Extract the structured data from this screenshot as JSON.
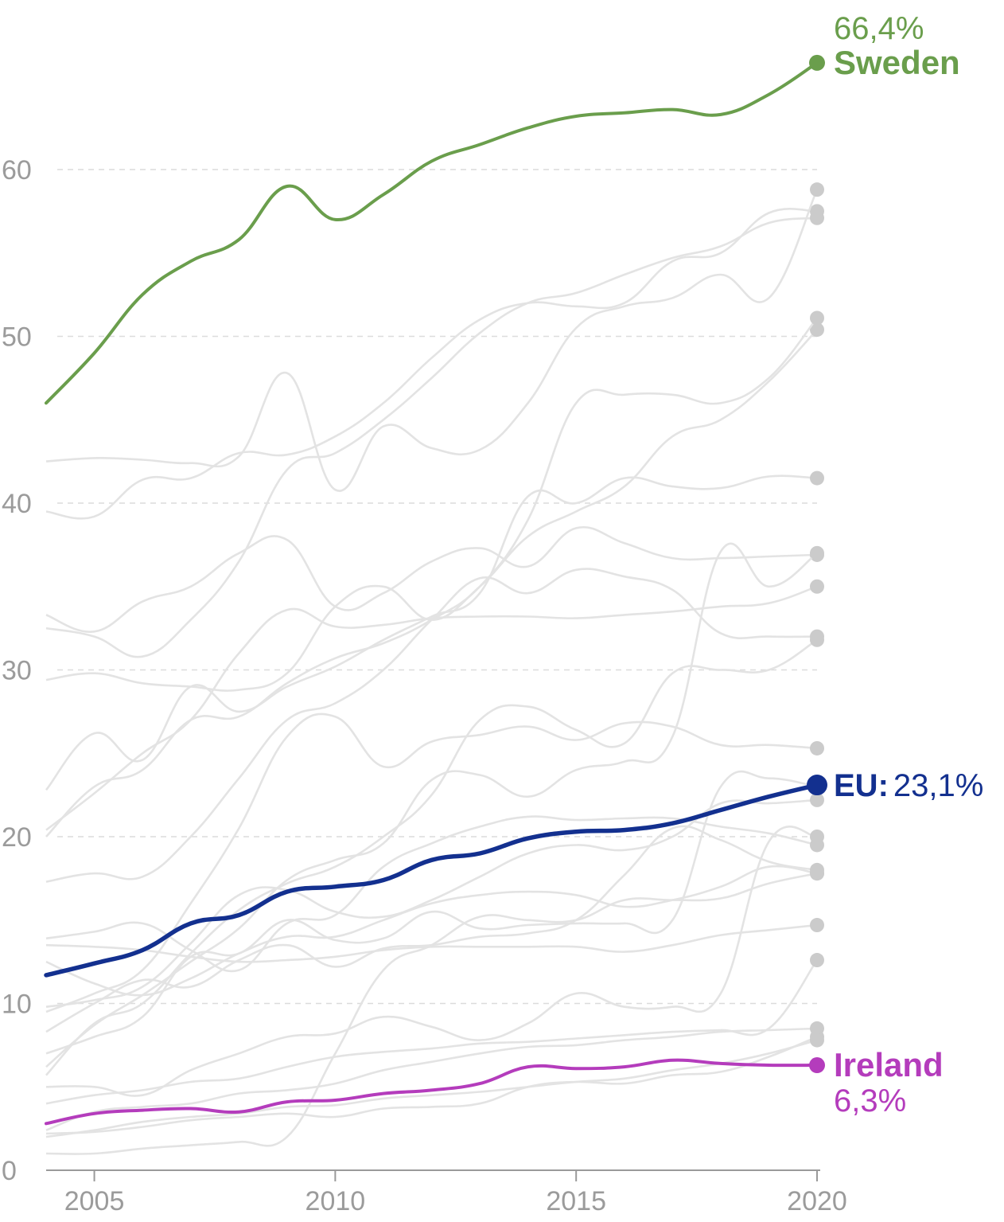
{
  "chart_data": {
    "type": "line",
    "title": "",
    "xlabel": "",
    "ylabel": "",
    "xlim": [
      2004,
      2020
    ],
    "ylim": [
      0,
      66.4
    ],
    "x_ticks": [
      "2005",
      "2010",
      "2015",
      "2020"
    ],
    "y_ticks": [
      "0",
      "10",
      "20",
      "30",
      "40",
      "50",
      "60"
    ],
    "grid": "horizontal dashed",
    "x": [
      2004,
      2005,
      2006,
      2007,
      2008,
      2009,
      2010,
      2011,
      2012,
      2013,
      2014,
      2015,
      2016,
      2017,
      2018,
      2019,
      2020
    ],
    "highlight_series": [
      {
        "key": "sweden",
        "name": "Sweden",
        "value_label": "66,4%",
        "color": "#6a9e4c",
        "values": [
          46.0,
          49.0,
          52.5,
          54.5,
          55.8,
          59.0,
          57.0,
          58.5,
          60.5,
          61.5,
          62.5,
          63.2,
          63.4,
          63.6,
          63.3,
          64.5,
          66.4
        ]
      },
      {
        "key": "eu",
        "name": "EU:",
        "value_label": "23,1%",
        "color": "#13308f",
        "values": [
          11.7,
          12.4,
          13.2,
          14.8,
          15.3,
          16.7,
          17.0,
          17.4,
          18.6,
          19.0,
          19.9,
          20.3,
          20.4,
          20.8,
          21.6,
          22.4,
          23.1
        ]
      },
      {
        "key": "ireland",
        "name": "Ireland",
        "value_label": "6,3%",
        "color": "#b43cbc",
        "values": [
          2.8,
          3.4,
          3.6,
          3.7,
          3.5,
          4.1,
          4.2,
          4.6,
          4.8,
          5.2,
          6.2,
          6.1,
          6.2,
          6.6,
          6.4,
          6.3,
          6.3
        ]
      }
    ],
    "background_series": [
      [
        22.8,
        26.2,
        24.6,
        29.0,
        27.5,
        29.0,
        30.2,
        31.8,
        33.2,
        34.6,
        40.4,
        40.0,
        41.5,
        41.0,
        40.9,
        41.6,
        41.5
      ],
      [
        39.5,
        39.2,
        41.4,
        41.5,
        43.0,
        42.9,
        44.0,
        46.0,
        48.7,
        51.0,
        52.0,
        51.8,
        52.0,
        54.5,
        55.0,
        57.4,
        57.5
      ],
      [
        42.5,
        42.7,
        42.6,
        42.4,
        42.8,
        47.8,
        40.8,
        44.6,
        43.3,
        43.2,
        46.0,
        50.5,
        51.8,
        52.3,
        53.7,
        52.3,
        58.8
      ],
      [
        32.5,
        32.0,
        30.8,
        33.0,
        36.5,
        42.0,
        43.0,
        45.0,
        47.5,
        50.2,
        52.0,
        52.6,
        53.7,
        54.7,
        55.4,
        56.8,
        57.1
      ],
      [
        29.4,
        29.8,
        29.2,
        29.0,
        28.8,
        29.8,
        33.8,
        35.0,
        33.0,
        35.0,
        38.0,
        39.5,
        41.0,
        44.0,
        45.0,
        47.3,
        50.4
      ],
      [
        33.3,
        32.3,
        34.1,
        35.0,
        37.0,
        37.8,
        33.8,
        34.6,
        36.5,
        37.3,
        36.2,
        38.5,
        37.6,
        36.7,
        36.7,
        36.8,
        36.9
      ],
      [
        20.0,
        23.0,
        24.0,
        27.0,
        27.2,
        29.2,
        30.7,
        31.6,
        33.0,
        35.0,
        39.0,
        46.0,
        46.5,
        46.5,
        46.0,
        47.5,
        51.1
      ],
      [
        20.4,
        22.6,
        25.0,
        27.0,
        31.0,
        33.6,
        32.6,
        32.7,
        33.1,
        33.2,
        33.2,
        33.1,
        33.3,
        33.5,
        33.8,
        34.0,
        35.0
      ],
      [
        9.5,
        10.6,
        12.0,
        16.0,
        20.5,
        26.0,
        27.2,
        24.2,
        25.7,
        26.1,
        26.6,
        25.8,
        26.8,
        26.6,
        25.5,
        25.5,
        25.3
      ],
      [
        17.3,
        17.8,
        17.6,
        20.0,
        23.5,
        27.0,
        28.0,
        30.0,
        33.0,
        35.5,
        34.6,
        36.0,
        35.6,
        34.8,
        32.2,
        32.0,
        32.0
      ],
      [
        13.9,
        14.3,
        14.8,
        13.2,
        12.0,
        14.8,
        15.3,
        18.2,
        19.6,
        20.6,
        21.2,
        21.0,
        21.1,
        21.1,
        20.6,
        20.2,
        19.5
      ],
      [
        5.7,
        8.8,
        10.0,
        13.0,
        15.6,
        17.2,
        18.2,
        20.0,
        22.5,
        27.0,
        27.8,
        26.4,
        25.6,
        29.8,
        30.0,
        30.0,
        31.8
      ],
      [
        6.2,
        8.7,
        10.5,
        12.5,
        14.5,
        17.4,
        18.6,
        19.6,
        23.4,
        23.7,
        22.4,
        24.0,
        24.5,
        26.0,
        37.1,
        35.0,
        37.0
      ],
      [
        9.8,
        10.2,
        11.0,
        13.6,
        16.5,
        16.8,
        15.5,
        15.2,
        16.2,
        17.6,
        19.0,
        19.5,
        19.2,
        20.0,
        22.0,
        22.0,
        22.2
      ],
      [
        12.5,
        11.2,
        10.5,
        11.5,
        13.0,
        14.0,
        14.0,
        15.0,
        16.0,
        16.5,
        16.7,
        16.5,
        15.8,
        16.2,
        17.0,
        18.2,
        17.8
      ],
      [
        7.0,
        8.0,
        9.2,
        12.8,
        13.0,
        15.0,
        13.8,
        13.9,
        15.5,
        14.5,
        14.7,
        14.8,
        14.8,
        15.0,
        23.0,
        23.5,
        23.0
      ],
      [
        8.3,
        10.0,
        11.4,
        11.0,
        12.6,
        13.5,
        12.2,
        13.3,
        13.5,
        14.0,
        14.2,
        15.0,
        17.7,
        20.5,
        19.8,
        18.5,
        18.0
      ],
      [
        13.5,
        13.4,
        13.2,
        12.8,
        12.5,
        12.6,
        12.8,
        13.2,
        13.4,
        13.4,
        13.4,
        13.4,
        13.1,
        13.5,
        14.1,
        14.4,
        14.7
      ],
      [
        5.0,
        5.0,
        4.5,
        6.0,
        7.0,
        8.0,
        8.2,
        9.2,
        8.6,
        7.8,
        8.8,
        10.6,
        9.8,
        9.8,
        10.6,
        19.7,
        20.0
      ],
      [
        2.2,
        2.3,
        2.6,
        3.0,
        3.2,
        3.4,
        3.2,
        3.7,
        3.8,
        4.0,
        5.0,
        5.3,
        5.2,
        5.7,
        5.9,
        6.8,
        8.0
      ],
      [
        1.0,
        1.0,
        1.3,
        1.5,
        1.7,
        2.0,
        7.0,
        12.0,
        13.5,
        15.2,
        15.0,
        15.0,
        16.2,
        16.2,
        16.3,
        17.2,
        17.8
      ],
      [
        2.4,
        3.5,
        3.8,
        4.0,
        4.6,
        4.8,
        5.2,
        6.0,
        6.5,
        7.0,
        7.4,
        7.5,
        7.8,
        8.0,
        8.3,
        8.4,
        8.5
      ],
      [
        4.0,
        4.5,
        4.8,
        5.3,
        5.5,
        6.2,
        6.8,
        7.1,
        7.3,
        7.6,
        7.7,
        7.9,
        8.1,
        8.3,
        8.4,
        8.5,
        12.6
      ],
      [
        2.0,
        2.4,
        2.9,
        3.2,
        3.4,
        3.8,
        3.9,
        4.3,
        4.5,
        4.7,
        5.0,
        5.3,
        5.5,
        6.0,
        6.4,
        7.0,
        7.8
      ]
    ]
  }
}
